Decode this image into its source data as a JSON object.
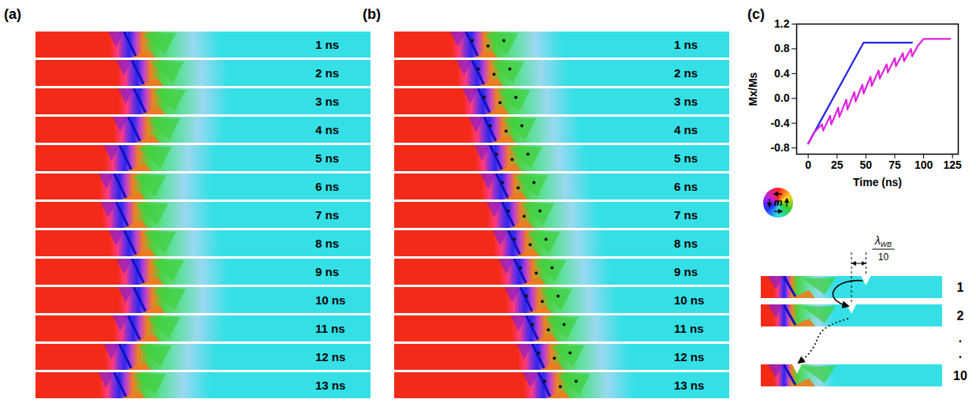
{
  "panels": {
    "a": {
      "letter": "(a)",
      "times": [
        "1 ns",
        "2 ns",
        "3 ns",
        "4 ns",
        "5 ns",
        "6 ns",
        "7 ns",
        "8 ns",
        "9 ns",
        "10 ns",
        "11 ns",
        "12 ns",
        "13 ns"
      ]
    },
    "b": {
      "letter": "(b)",
      "times": [
        "1 ns",
        "2 ns",
        "3 ns",
        "4 ns",
        "5 ns",
        "6 ns",
        "7 ns",
        "8 ns",
        "9 ns",
        "10 ns",
        "11 ns",
        "12 ns",
        "13 ns"
      ]
    },
    "c": {
      "letter": "(c)"
    }
  },
  "chart_data": {
    "type": "line",
    "x_label": "Time (ns)",
    "y_label": "Mx/Ms",
    "xlim": [
      -10,
      130
    ],
    "xticks": [
      0,
      25,
      50,
      75,
      100,
      125
    ],
    "ylim": [
      -0.9,
      1.2
    ],
    "yticks": [
      -0.8,
      -0.4,
      {
        "value": 0,
        "label": "0.0"
      },
      0.4,
      0.8,
      1.2
    ],
    "series": [
      {
        "color": "#2222e8",
        "x": [
          0,
          48,
          90
        ],
        "values": [
          -0.73,
          0.9,
          0.9
        ]
      },
      {
        "color": "#e020e0",
        "x": [
          0,
          5,
          12,
          13,
          19,
          20,
          26,
          27,
          33,
          34,
          40,
          41,
          47,
          48,
          54,
          55,
          61,
          62,
          68,
          69,
          75,
          76,
          82,
          83,
          89,
          90,
          95,
          100,
          123
        ],
        "values": [
          -0.73,
          -0.55,
          -0.42,
          -0.52,
          -0.28,
          -0.42,
          -0.15,
          -0.3,
          -0.02,
          -0.18,
          0.1,
          -0.05,
          0.22,
          0.08,
          0.35,
          0.2,
          0.45,
          0.32,
          0.55,
          0.42,
          0.65,
          0.52,
          0.73,
          0.6,
          0.8,
          0.68,
          0.85,
          0.96,
          0.96
        ]
      }
    ]
  },
  "color_wheel": {
    "label": "m"
  },
  "schematic": {
    "step_label": {
      "numerator": "λ",
      "subscript": "WB",
      "denominator": "10"
    },
    "row_labels": [
      "1",
      "2",
      ".",
      ".",
      "10"
    ]
  }
}
